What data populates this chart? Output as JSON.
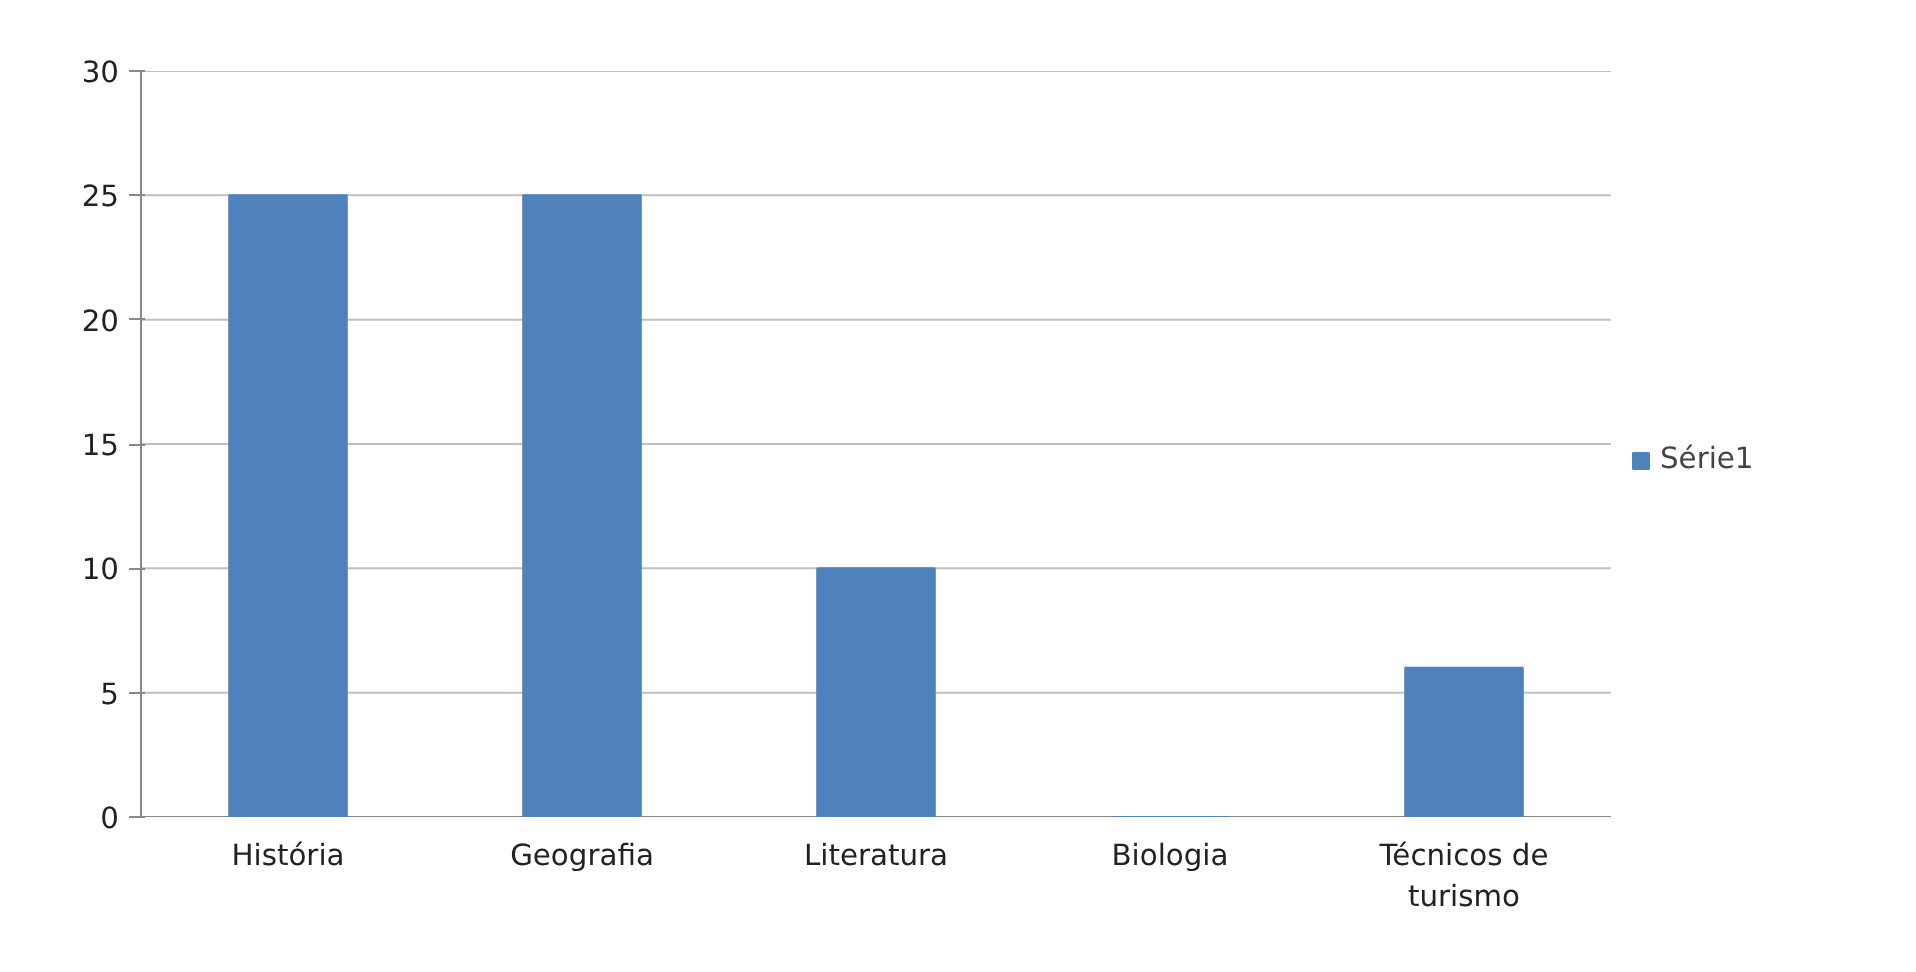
{
  "chart_data": {
    "type": "bar",
    "categories": [
      "História",
      "Geografia",
      "Literatura",
      "Biologia",
      "Técnicos de turismo"
    ],
    "series": [
      {
        "name": "Série1",
        "color": "#4f81bd",
        "values": [
          25,
          25,
          10,
          0,
          6
        ]
      }
    ],
    "ylim": [
      0,
      30
    ],
    "yticks": [
      0,
      5,
      10,
      15,
      20,
      25,
      30
    ],
    "grid": "y",
    "legend": "right"
  }
}
